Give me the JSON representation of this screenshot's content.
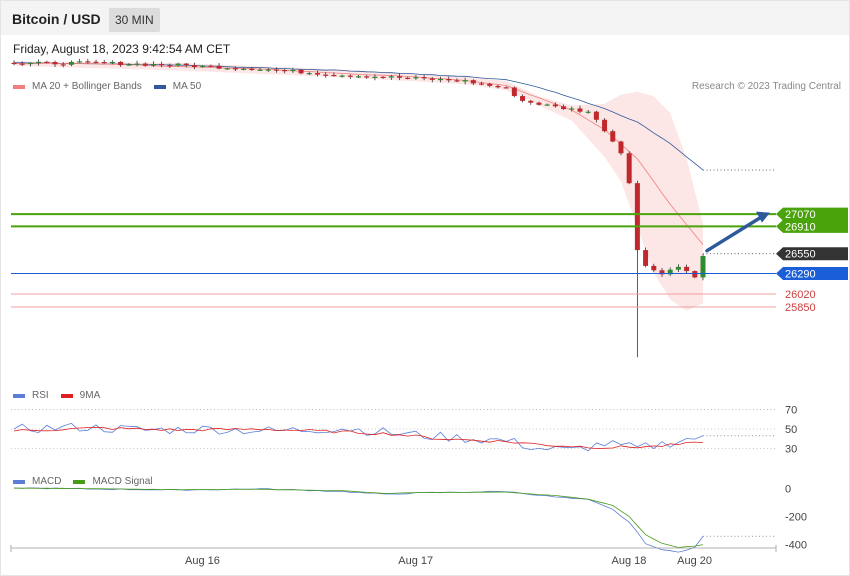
{
  "header": {
    "title": "Bitcoin / USD",
    "timeframe": "30 MIN"
  },
  "datetime": "Friday, August 18, 2023 9:42:54 AM CET",
  "credit": "Research © 2023 Trading Central",
  "legends": {
    "price": [
      {
        "label": "MA 20 + Bollinger Bands",
        "color": "#f08080"
      },
      {
        "label": "MA 50",
        "color": "#2e5a9c"
      }
    ],
    "rsi": [
      {
        "label": "RSI",
        "color": "#5b7fd6"
      },
      {
        "label": "9MA",
        "color": "#e02020"
      }
    ],
    "macd": [
      {
        "label": "MACD",
        "color": "#5b7fd6"
      },
      {
        "label": "MACD Signal",
        "color": "#4a9a1a"
      }
    ]
  },
  "chart_data": [
    {
      "type": "candlestick",
      "panel": "price",
      "ylim": [
        25350,
        28900
      ],
      "levels": [
        {
          "value": 27070,
          "label": "27070",
          "kind": "resistance",
          "color": "#4aa30a"
        },
        {
          "value": 26910,
          "label": "26910",
          "kind": "resistance",
          "color": "#4aa30a"
        },
        {
          "value": 26550,
          "label": "26550",
          "kind": "last",
          "color": "#333333"
        },
        {
          "value": 26290,
          "label": "26290",
          "kind": "pivot",
          "color": "#1a5fd8"
        },
        {
          "value": 26020,
          "label": "26020",
          "kind": "support",
          "color": "#d04040"
        },
        {
          "value": 25850,
          "label": "25850",
          "kind": "support",
          "color": "#d04040"
        }
      ],
      "anchors": {
        "close": [
          [
            0,
            29050
          ],
          [
            10,
            29060
          ],
          [
            20,
            29030
          ],
          [
            30,
            28980
          ],
          [
            40,
            28900
          ],
          [
            48,
            28860
          ],
          [
            55,
            28820
          ],
          [
            60,
            28720
          ],
          [
            62,
            28560
          ],
          [
            66,
            28480
          ],
          [
            70,
            28420
          ],
          [
            72,
            28180
          ],
          [
            74,
            27880
          ],
          [
            75,
            27500
          ],
          [
            76,
            26600
          ],
          [
            77,
            26380
          ],
          [
            79,
            26300
          ],
          [
            81,
            26380
          ],
          [
            83,
            26260
          ],
          [
            84,
            26520
          ]
        ],
        "ma20": [
          [
            0,
            29050
          ],
          [
            10,
            29050
          ],
          [
            20,
            29010
          ],
          [
            30,
            28980
          ],
          [
            40,
            28920
          ],
          [
            48,
            28880
          ],
          [
            55,
            28830
          ],
          [
            60,
            28760
          ],
          [
            64,
            28600
          ],
          [
            68,
            28440
          ],
          [
            72,
            28180
          ],
          [
            76,
            27800
          ],
          [
            80,
            27200
          ],
          [
            84,
            26670
          ]
        ],
        "bb_upper": [
          [
            0,
            29080
          ],
          [
            20,
            29060
          ],
          [
            40,
            28970
          ],
          [
            55,
            28880
          ],
          [
            60,
            28820
          ],
          [
            64,
            28620
          ],
          [
            68,
            28500
          ],
          [
            72,
            28520
          ],
          [
            74,
            28640
          ],
          [
            76,
            28680
          ],
          [
            78,
            28620
          ],
          [
            80,
            28400
          ],
          [
            82,
            27800
          ],
          [
            84,
            26950
          ]
        ],
        "bb_lower": [
          [
            0,
            29020
          ],
          [
            20,
            28960
          ],
          [
            40,
            28870
          ],
          [
            55,
            28780
          ],
          [
            60,
            28700
          ],
          [
            64,
            28500
          ],
          [
            68,
            28300
          ],
          [
            72,
            27820
          ],
          [
            74,
            27500
          ],
          [
            76,
            26900
          ],
          [
            78,
            26300
          ],
          [
            80,
            25950
          ],
          [
            82,
            25800
          ],
          [
            84,
            25900
          ]
        ],
        "ma50": [
          [
            0,
            29060
          ],
          [
            20,
            29030
          ],
          [
            40,
            28960
          ],
          [
            55,
            28880
          ],
          [
            60,
            28840
          ],
          [
            64,
            28740
          ],
          [
            68,
            28600
          ],
          [
            72,
            28460
          ],
          [
            76,
            28280
          ],
          [
            80,
            28000
          ],
          [
            84,
            27650
          ]
        ]
      },
      "ma50_last": 27650,
      "spike_low": 25190,
      "projection": {
        "from": 26590,
        "to": 27090
      }
    },
    {
      "type": "line",
      "panel": "rsi",
      "ylim": [
        15,
        82
      ],
      "ticks": [
        "70",
        "50",
        "30"
      ],
      "anchors": {
        "rsi": [
          [
            0,
            50
          ],
          [
            8,
            52
          ],
          [
            16,
            49
          ],
          [
            24,
            50
          ],
          [
            32,
            48
          ],
          [
            40,
            51
          ],
          [
            46,
            46
          ],
          [
            52,
            42
          ],
          [
            60,
            38
          ],
          [
            64,
            30
          ],
          [
            68,
            28
          ],
          [
            72,
            35
          ],
          [
            76,
            30
          ],
          [
            80,
            36
          ],
          [
            84,
            43
          ]
        ],
        "ma9": [
          [
            0,
            48
          ],
          [
            10,
            51
          ],
          [
            20,
            49
          ],
          [
            30,
            50
          ],
          [
            40,
            47
          ],
          [
            46,
            45
          ],
          [
            52,
            40
          ],
          [
            60,
            37
          ],
          [
            66,
            33
          ],
          [
            72,
            31
          ],
          [
            78,
            32
          ],
          [
            84,
            36
          ]
        ]
      },
      "last_value": 43
    },
    {
      "type": "line",
      "panel": "macd",
      "ylim": [
        -460,
        40
      ],
      "ticks": [
        "0",
        "-200",
        "-400"
      ],
      "anchors": {
        "macd": [
          [
            0,
            5
          ],
          [
            10,
            -3
          ],
          [
            20,
            -10
          ],
          [
            30,
            -2
          ],
          [
            40,
            -20
          ],
          [
            45,
            -40
          ],
          [
            50,
            -30
          ],
          [
            60,
            -20
          ],
          [
            66,
            -60
          ],
          [
            70,
            -80
          ],
          [
            73,
            -150
          ],
          [
            75,
            -240
          ],
          [
            77,
            -390
          ],
          [
            79,
            -440
          ],
          [
            81,
            -450
          ],
          [
            83,
            -420
          ],
          [
            84,
            -340
          ]
        ],
        "signal": [
          [
            0,
            3
          ],
          [
            10,
            0
          ],
          [
            20,
            -8
          ],
          [
            30,
            -5
          ],
          [
            40,
            -15
          ],
          [
            45,
            -35
          ],
          [
            50,
            -28
          ],
          [
            60,
            -25
          ],
          [
            66,
            -50
          ],
          [
            70,
            -75
          ],
          [
            73,
            -120
          ],
          [
            75,
            -200
          ],
          [
            77,
            -330
          ],
          [
            79,
            -390
          ],
          [
            81,
            -420
          ],
          [
            83,
            -410
          ],
          [
            84,
            -400
          ]
        ]
      },
      "last_value": -340
    }
  ],
  "xaxis": {
    "labels": [
      {
        "text": "Aug 16",
        "bar": 22
      },
      {
        "text": "Aug 17",
        "bar": 48
      },
      {
        "text": "Aug 18",
        "bar": 74
      },
      {
        "text": "Aug 20",
        "bar": 82
      }
    ]
  }
}
